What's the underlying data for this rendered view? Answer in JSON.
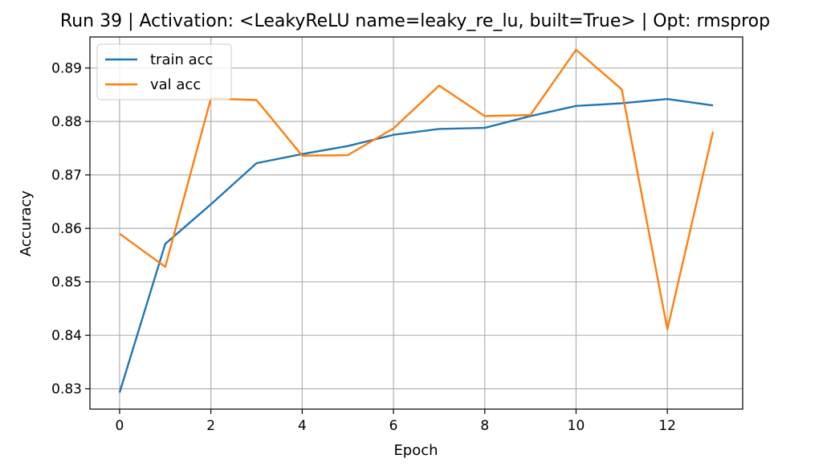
{
  "chart_data": {
    "type": "line",
    "title": "Run 39 | Activation: <LeakyReLU name=leaky_re_lu, built=True> | Opt: rmsprop",
    "xlabel": "Epoch",
    "ylabel": "Accuracy",
    "xlim": [
      -0.65,
      13.65
    ],
    "ylim": [
      0.8262,
      0.8958
    ],
    "xticks": [
      0,
      2,
      4,
      6,
      8,
      10,
      12
    ],
    "yticks": [
      0.83,
      0.84,
      0.85,
      0.86,
      0.87,
      0.88,
      0.89
    ],
    "ytick_labels": [
      "0.83",
      "0.84",
      "0.85",
      "0.86",
      "0.87",
      "0.88",
      "0.89"
    ],
    "grid": true,
    "legend_position": "top-left",
    "x": [
      0,
      1,
      2,
      3,
      4,
      5,
      6,
      7,
      8,
      9,
      10,
      11,
      12,
      13
    ],
    "series": [
      {
        "name": "train acc",
        "color": "#1f77b4",
        "values": [
          0.8293,
          0.8571,
          0.8645,
          0.8722,
          0.8739,
          0.8754,
          0.8775,
          0.8786,
          0.8788,
          0.881,
          0.8829,
          0.8834,
          0.8842,
          0.883
        ]
      },
      {
        "name": "val acc",
        "color": "#ff7f0e",
        "values": [
          0.859,
          0.8528,
          0.8843,
          0.884,
          0.8736,
          0.8737,
          0.8787,
          0.8867,
          0.881,
          0.8812,
          0.8934,
          0.886,
          0.8411,
          0.8781
        ]
      }
    ]
  }
}
